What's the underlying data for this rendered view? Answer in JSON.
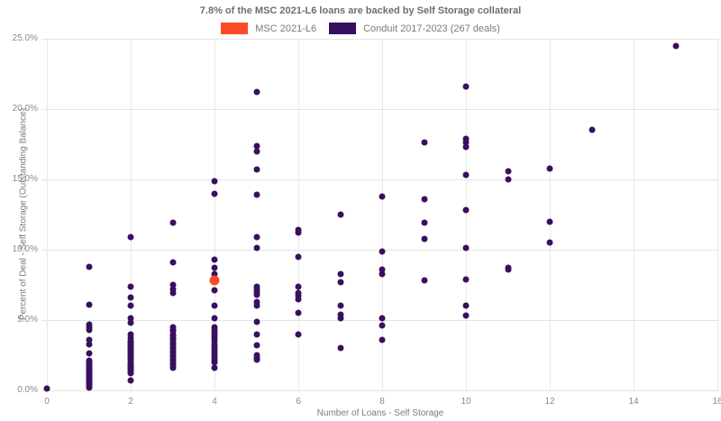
{
  "header": {
    "title": "7.8% of the MSC 2021-L6 loans are backed by Self Storage collateral"
  },
  "legend": [
    {
      "label": "MSC 2021-L6",
      "color": "#fb4b26"
    },
    {
      "label": "Conduit 2017-2023 (267 deals)",
      "color": "#38105f"
    }
  ],
  "chart_data": {
    "type": "scatter",
    "title": "7.8% of the MSC 2021-L6 loans are backed by Self Storage collateral",
    "xlabel": "Number of Loans - Self Storage",
    "ylabel": "Percent of Deal - Self Storage (Outstanding Balance)",
    "xlim": [
      0,
      16
    ],
    "ylim": [
      0,
      25
    ],
    "x_ticks": [
      0,
      2,
      4,
      6,
      8,
      10,
      12,
      14,
      16
    ],
    "x_tick_labels": [
      "0",
      "2",
      "4",
      "6",
      "8",
      "10",
      "12",
      "14",
      "16"
    ],
    "y_ticks": [
      0,
      5,
      10,
      15,
      20,
      25
    ],
    "y_tick_labels": [
      "0.0%",
      "5.0%",
      "10.0%",
      "15.0%",
      "20.0%",
      "25.0%"
    ],
    "grid": true,
    "legend_position": "top-center",
    "series": [
      {
        "name": "Conduit 2017-2023 (267 deals)",
        "color": "#38105f",
        "marker_px": 7,
        "points": [
          [
            0,
            0.1
          ],
          [
            1,
            8.8
          ],
          [
            1,
            6.1
          ],
          [
            1,
            4.7
          ],
          [
            1,
            4.5
          ],
          [
            1,
            4.3
          ],
          [
            1,
            3.6
          ],
          [
            1,
            3.3
          ],
          [
            1,
            2.6
          ],
          [
            1,
            2.1
          ],
          [
            1,
            2.0
          ],
          [
            1,
            1.9
          ],
          [
            1,
            1.8
          ],
          [
            1,
            1.7
          ],
          [
            1,
            1.6
          ],
          [
            1,
            1.5
          ],
          [
            1,
            1.45
          ],
          [
            1,
            1.4
          ],
          [
            1,
            1.35
          ],
          [
            1,
            1.3
          ],
          [
            1,
            1.25
          ],
          [
            1,
            1.2
          ],
          [
            1,
            1.15
          ],
          [
            1,
            1.1
          ],
          [
            1,
            1.05
          ],
          [
            1,
            1.0
          ],
          [
            1,
            0.95
          ],
          [
            1,
            0.9
          ],
          [
            1,
            0.85
          ],
          [
            1,
            0.8
          ],
          [
            1,
            0.75
          ],
          [
            1,
            0.7
          ],
          [
            1,
            0.65
          ],
          [
            1,
            0.6
          ],
          [
            1,
            0.5
          ],
          [
            1,
            0.4
          ],
          [
            1,
            0.3
          ],
          [
            1,
            0.2
          ],
          [
            2,
            10.9
          ],
          [
            2,
            7.4
          ],
          [
            2,
            6.6
          ],
          [
            2,
            6.0
          ],
          [
            2,
            5.1
          ],
          [
            2,
            4.8
          ],
          [
            2,
            4.0
          ],
          [
            2,
            3.7
          ],
          [
            2,
            3.5
          ],
          [
            2,
            3.4
          ],
          [
            2,
            3.3
          ],
          [
            2,
            3.2
          ],
          [
            2,
            3.1
          ],
          [
            2,
            3.0
          ],
          [
            2,
            2.9
          ],
          [
            2,
            2.8
          ],
          [
            2,
            2.7
          ],
          [
            2,
            2.6
          ],
          [
            2,
            2.5
          ],
          [
            2,
            2.4
          ],
          [
            2,
            2.3
          ],
          [
            2,
            2.2
          ],
          [
            2,
            2.0
          ],
          [
            2,
            1.9
          ],
          [
            2,
            1.8
          ],
          [
            2,
            1.7
          ],
          [
            2,
            1.6
          ],
          [
            2,
            1.5
          ],
          [
            2,
            1.4
          ],
          [
            2,
            1.3
          ],
          [
            2,
            1.2
          ],
          [
            2,
            0.7
          ],
          [
            3,
            11.9
          ],
          [
            3,
            9.1
          ],
          [
            3,
            7.5
          ],
          [
            3,
            7.2
          ],
          [
            3,
            6.9
          ],
          [
            3,
            4.5
          ],
          [
            3,
            4.3
          ],
          [
            3,
            4.2
          ],
          [
            3,
            4.0
          ],
          [
            3,
            3.9
          ],
          [
            3,
            3.7
          ],
          [
            3,
            3.6
          ],
          [
            3,
            3.4
          ],
          [
            3,
            3.3
          ],
          [
            3,
            3.1
          ],
          [
            3,
            3.0
          ],
          [
            3,
            2.8
          ],
          [
            3,
            2.7
          ],
          [
            3,
            2.5
          ],
          [
            3,
            2.4
          ],
          [
            3,
            2.2
          ],
          [
            3,
            2.1
          ],
          [
            3,
            1.9
          ],
          [
            3,
            1.8
          ],
          [
            3,
            1.6
          ],
          [
            4,
            14.9
          ],
          [
            4,
            14.0
          ],
          [
            4,
            9.3
          ],
          [
            4,
            8.7
          ],
          [
            4,
            8.3
          ],
          [
            4,
            7.1
          ],
          [
            4,
            6.0
          ],
          [
            4,
            5.1
          ],
          [
            4,
            4.5
          ],
          [
            4,
            4.3
          ],
          [
            4,
            4.1
          ],
          [
            4,
            3.9
          ],
          [
            4,
            3.7
          ],
          [
            4,
            3.5
          ],
          [
            4,
            3.3
          ],
          [
            4,
            3.1
          ],
          [
            4,
            2.9
          ],
          [
            4,
            2.7
          ],
          [
            4,
            2.5
          ],
          [
            4,
            2.3
          ],
          [
            4,
            2.1
          ],
          [
            4,
            2.0
          ],
          [
            4,
            1.6
          ],
          [
            5,
            21.2
          ],
          [
            5,
            17.4
          ],
          [
            5,
            17.0
          ],
          [
            5,
            15.7
          ],
          [
            5,
            13.9
          ],
          [
            5,
            10.9
          ],
          [
            5,
            10.1
          ],
          [
            5,
            7.4
          ],
          [
            5,
            7.2
          ],
          [
            5,
            7.0
          ],
          [
            5,
            6.8
          ],
          [
            5,
            6.3
          ],
          [
            5,
            6.0
          ],
          [
            5,
            4.9
          ],
          [
            5,
            4.0
          ],
          [
            5,
            3.2
          ],
          [
            5,
            2.5
          ],
          [
            5,
            2.3
          ],
          [
            5,
            2.2
          ],
          [
            6,
            11.4
          ],
          [
            6,
            11.2
          ],
          [
            6,
            9.5
          ],
          [
            6,
            7.4
          ],
          [
            6,
            6.9
          ],
          [
            6,
            6.7
          ],
          [
            6,
            6.5
          ],
          [
            6,
            5.5
          ],
          [
            6,
            4.0
          ],
          [
            7,
            12.5
          ],
          [
            7,
            8.3
          ],
          [
            7,
            7.7
          ],
          [
            7,
            6.0
          ],
          [
            7,
            5.4
          ],
          [
            7,
            5.1
          ],
          [
            7,
            3.0
          ],
          [
            8,
            13.8
          ],
          [
            8,
            9.9
          ],
          [
            8,
            8.6
          ],
          [
            8,
            8.3
          ],
          [
            8,
            5.1
          ],
          [
            8,
            4.6
          ],
          [
            8,
            3.6
          ],
          [
            9,
            17.6
          ],
          [
            9,
            13.6
          ],
          [
            9,
            11.9
          ],
          [
            9,
            10.8
          ],
          [
            9,
            7.8
          ],
          [
            10,
            21.6
          ],
          [
            10,
            17.9
          ],
          [
            10,
            17.6
          ],
          [
            10,
            17.3
          ],
          [
            10,
            15.3
          ],
          [
            10,
            12.8
          ],
          [
            10,
            10.1
          ],
          [
            10,
            7.9
          ],
          [
            10,
            6.0
          ],
          [
            10,
            5.3
          ],
          [
            11,
            15.6
          ],
          [
            11,
            15.0
          ],
          [
            11,
            8.7
          ],
          [
            11,
            8.6
          ],
          [
            12,
            15.8
          ],
          [
            12,
            12.0
          ],
          [
            12,
            10.5
          ],
          [
            13,
            18.5
          ],
          [
            15,
            24.5
          ]
        ]
      },
      {
        "name": "MSC 2021-L6",
        "color": "#fb4b26",
        "marker_px": 11,
        "points": [
          [
            4,
            7.8
          ]
        ]
      }
    ]
  }
}
